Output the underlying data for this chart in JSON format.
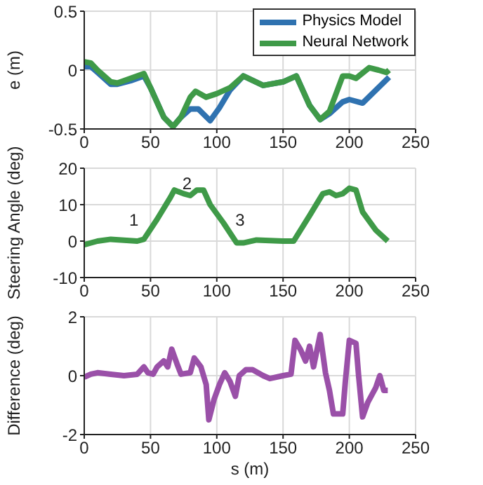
{
  "chart_data": [
    {
      "type": "line",
      "ylabel": "e (m)",
      "xlim": [
        0,
        250
      ],
      "xticks": [
        0,
        50,
        100,
        150,
        200,
        250
      ],
      "ylim": [
        -0.5,
        0.5
      ],
      "yticks": [
        -0.5,
        0,
        0.5
      ],
      "grid": true,
      "legend": "top right",
      "series": [
        {
          "name": "Physics Model",
          "color": "#2f72b0",
          "x": [
            0,
            5,
            10,
            20,
            25,
            35,
            45,
            50,
            60,
            67,
            73,
            80,
            86,
            95,
            102,
            110,
            120,
            135,
            150,
            160,
            170,
            178,
            185,
            195,
            200,
            210,
            220,
            230
          ],
          "values": [
            0.03,
            0.03,
            -0.02,
            -0.12,
            -0.12,
            -0.09,
            -0.05,
            -0.15,
            -0.4,
            -0.48,
            -0.4,
            -0.33,
            -0.33,
            -0.43,
            -0.32,
            -0.17,
            -0.05,
            -0.13,
            -0.1,
            -0.05,
            -0.3,
            -0.42,
            -0.37,
            -0.27,
            -0.25,
            -0.28,
            -0.17,
            -0.06
          ]
        },
        {
          "name": "Neural Network",
          "color": "#3f9a48",
          "x": [
            0,
            5,
            10,
            20,
            25,
            35,
            45,
            50,
            60,
            67,
            73,
            80,
            84,
            92,
            100,
            110,
            120,
            135,
            150,
            160,
            170,
            178,
            185,
            195,
            200,
            205,
            215,
            222,
            228,
            230
          ],
          "values": [
            0.07,
            0.06,
            0.0,
            -0.1,
            -0.11,
            -0.07,
            -0.03,
            -0.15,
            -0.4,
            -0.48,
            -0.4,
            -0.23,
            -0.18,
            -0.23,
            -0.2,
            -0.15,
            -0.05,
            -0.13,
            -0.1,
            -0.05,
            -0.3,
            -0.42,
            -0.35,
            -0.05,
            -0.05,
            -0.07,
            0.02,
            0.0,
            -0.02,
            0.0
          ]
        }
      ]
    },
    {
      "type": "line",
      "ylabel": "Steering Angle (deg)",
      "xlim": [
        0,
        250
      ],
      "xticks": [
        0,
        50,
        100,
        150,
        200,
        250
      ],
      "ylim": [
        -10,
        20
      ],
      "yticks": [
        -10,
        0,
        10,
        20
      ],
      "grid": true,
      "annotations": [
        "1",
        "2",
        "3"
      ],
      "series": [
        {
          "color": "#3f9a48",
          "x": [
            0,
            10,
            20,
            40,
            45,
            55,
            65,
            68,
            75,
            80,
            85,
            90,
            95,
            105,
            115,
            120,
            130,
            150,
            158,
            170,
            180,
            185,
            190,
            195,
            200,
            205,
            210,
            220,
            229
          ],
          "values": [
            -1,
            0,
            0.5,
            0,
            0.5,
            6,
            12,
            14,
            13,
            12.5,
            14,
            14,
            10,
            5,
            -0.5,
            -0.5,
            0.3,
            0,
            0,
            7,
            13,
            13.5,
            12.5,
            13,
            14.5,
            14,
            8,
            3,
            0
          ]
        }
      ]
    },
    {
      "type": "line",
      "xlabel": "s (m)",
      "ylabel": "Difference (deg)",
      "xlim": [
        0,
        250
      ],
      "xticks": [
        0,
        50,
        100,
        150,
        200,
        250
      ],
      "ylim": [
        -2,
        2
      ],
      "yticks": [
        -2,
        0,
        2
      ],
      "grid": true,
      "series": [
        {
          "color": "#9a50a8",
          "x": [
            0,
            5,
            10,
            20,
            30,
            40,
            45,
            48,
            52,
            55,
            60,
            63,
            66,
            70,
            73,
            80,
            83,
            88,
            92,
            94,
            98,
            102,
            106,
            110,
            114,
            117,
            122,
            127,
            135,
            140,
            150,
            156,
            159,
            163,
            167,
            170,
            173,
            178,
            182,
            185,
            188,
            195,
            197,
            200,
            205,
            207,
            210,
            214,
            220,
            223,
            226,
            229
          ],
          "values": [
            -0.05,
            0.05,
            0.1,
            0.05,
            0,
            0.05,
            0.3,
            0.1,
            0.05,
            0.3,
            0.5,
            0.3,
            0.9,
            0.4,
            0.05,
            0.1,
            0.6,
            0.3,
            -0.3,
            -1.5,
            -0.8,
            -0.3,
            0.1,
            -0.2,
            -0.7,
            0,
            0.2,
            0.2,
            0,
            -0.1,
            0,
            0.05,
            1.2,
            0.9,
            0.5,
            1,
            0.3,
            1.4,
            0.1,
            -0.5,
            -1.3,
            -1.3,
            -0.2,
            1.2,
            1.1,
            0,
            -1.4,
            -0.9,
            -0.4,
            0,
            -0.5,
            -0.5
          ]
        }
      ]
    }
  ]
}
